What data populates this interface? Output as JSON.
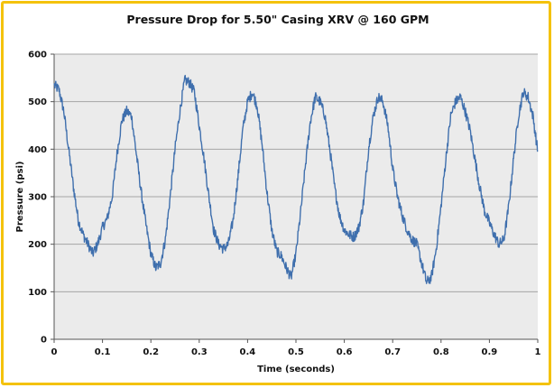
{
  "chart_data": {
    "type": "line",
    "title": "Pressure Drop for 5.50\" Casing XRV @ 160 GPM",
    "xlabel": "Time (seconds)",
    "ylabel": "Pressure (psi)",
    "xlim": [
      0,
      1
    ],
    "ylim": [
      0,
      600
    ],
    "x_ticks": [
      "0",
      "0.1",
      "0.2",
      "0.3",
      "0.4",
      "0.5",
      "0.6",
      "0.7",
      "0.8",
      "0.9",
      "1"
    ],
    "y_ticks": [
      "0",
      "100",
      "200",
      "300",
      "400",
      "500",
      "600"
    ],
    "grid": "horizontal",
    "legend": "none",
    "colors": {
      "line": "#3f6fad",
      "plot_bg": "#ebebeb",
      "grid": "#a6a6a6",
      "frame": "#f4c20d"
    },
    "series": [
      {
        "x": [
          0,
          0.01,
          0.02,
          0.03,
          0.04,
          0.05,
          0.06,
          0.07,
          0.08,
          0.09,
          0.1,
          0.11,
          0.12,
          0.13,
          0.14,
          0.15,
          0.16,
          0.17,
          0.18,
          0.19,
          0.2,
          0.21,
          0.22,
          0.23,
          0.24,
          0.25,
          0.26,
          0.27,
          0.28,
          0.29,
          0.3,
          0.31,
          0.32,
          0.33,
          0.34,
          0.35,
          0.36,
          0.37,
          0.38,
          0.39,
          0.4,
          0.41,
          0.42,
          0.43,
          0.44,
          0.45,
          0.46,
          0.47,
          0.48,
          0.49,
          0.5,
          0.51,
          0.52,
          0.53,
          0.54,
          0.55,
          0.56,
          0.57,
          0.58,
          0.59,
          0.6,
          0.61,
          0.62,
          0.63,
          0.64,
          0.65,
          0.66,
          0.67,
          0.68,
          0.69,
          0.7,
          0.71,
          0.72,
          0.73,
          0.74,
          0.75,
          0.76,
          0.77,
          0.78,
          0.79,
          0.8,
          0.81,
          0.82,
          0.83,
          0.84,
          0.85,
          0.86,
          0.87,
          0.88,
          0.89,
          0.9,
          0.91,
          0.92,
          0.93,
          0.94,
          0.95,
          0.96,
          0.97,
          0.98,
          0.99,
          1.0
        ],
        "values": [
          535,
          525,
          480,
          400,
          320,
          250,
          220,
          200,
          180,
          200,
          235,
          255,
          300,
          390,
          460,
          480,
          470,
          390,
          310,
          240,
          180,
          150,
          160,
          210,
          300,
          400,
          480,
          545,
          540,
          520,
          450,
          380,
          300,
          230,
          200,
          190,
          200,
          250,
          340,
          440,
          500,
          520,
          490,
          410,
          310,
          230,
          185,
          175,
          150,
          130,
          180,
          270,
          370,
          460,
          510,
          500,
          470,
          400,
          320,
          260,
          230,
          220,
          215,
          235,
          290,
          400,
          470,
          510,
          500,
          450,
          360,
          300,
          260,
          230,
          210,
          200,
          160,
          120,
          130,
          190,
          280,
          380,
          470,
          500,
          510,
          480,
          440,
          380,
          320,
          270,
          245,
          220,
          200,
          210,
          280,
          380,
          470,
          520,
          510,
          470,
          395
        ]
      }
    ]
  }
}
